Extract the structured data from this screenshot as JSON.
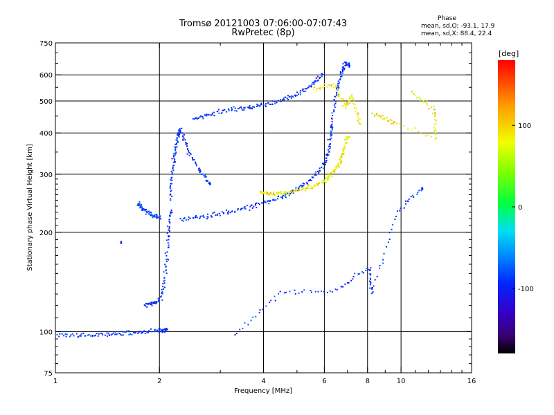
{
  "chart_data": {
    "type": "scatter",
    "title": "Tromsø 20121003 07:06:00-07:07:43",
    "subtitle": "RwPretec (8p)",
    "xlabel": "Frequency [MHz]",
    "ylabel": "Stationary phase Virtual Height [km]",
    "x_scale": "log",
    "y_scale": "log",
    "xlim": [
      1,
      16
    ],
    "ylim": [
      75,
      750
    ],
    "x_ticks": [
      1,
      2,
      4,
      6,
      8,
      10,
      16
    ],
    "x_tick_labels": [
      "1",
      "2",
      "4",
      "6",
      "8",
      "10",
      "16"
    ],
    "x_grid": [
      2,
      4,
      6,
      8,
      10
    ],
    "y_ticks": [
      75,
      100,
      200,
      300,
      400,
      500,
      600,
      750
    ],
    "y_tick_labels": [
      "75",
      "100",
      "200",
      "300",
      "400",
      "500",
      "600",
      "750"
    ],
    "y_grid": [
      100,
      200,
      300,
      400,
      500,
      600
    ],
    "grid": true,
    "colorbar": {
      "label": "[deg]",
      "range": [
        -180,
        180
      ],
      "ticks": [
        100,
        0,
        -100
      ],
      "tick_labels": [
        "100",
        "0",
        "-100"
      ],
      "colormap": "rainbow"
    },
    "phase_stats": {
      "header": "Phase",
      "o_line": "mean, sd,O: -93.1, 17.9",
      "x_line": "mean, sd,X:  88.4, 22.4"
    },
    "series": [
      {
        "mode": "O",
        "phase_mean": -93.1,
        "traces": [
          {
            "x": [
              1.0,
              1.2,
              1.4,
              1.6,
              1.8,
              2.0,
              2.1
            ],
            "y": [
              98,
              97,
              98,
              99,
              100,
              101,
              101
            ]
          },
          {
            "x": [
              1.55
            ],
            "y": [
              186
            ]
          },
          {
            "x": [
              1.82,
              1.92,
              2.02,
              2.08,
              2.12,
              2.16
            ],
            "y": [
              120,
              122,
              125,
              150,
              190,
              230
            ]
          },
          {
            "x": [
              1.72,
              1.8,
              1.9,
              2.0
            ],
            "y": [
              245,
              235,
              225,
              222
            ]
          },
          {
            "x": [
              2.15,
              2.18,
              2.22,
              2.26,
              2.3,
              2.4,
              2.6,
              2.8
            ],
            "y": [
              250,
              300,
              350,
              390,
              410,
              360,
              310,
              280
            ]
          },
          {
            "x": [
              2.3,
              2.6,
              3.0,
              3.5,
              4.0,
              4.5,
              5.0,
              5.5,
              6.0,
              6.2,
              6.3
            ],
            "y": [
              218,
              222,
              228,
              236,
              245,
              255,
              270,
              290,
              320,
              360,
              420
            ]
          },
          {
            "x": [
              2.5,
              2.8,
              3.2,
              3.6,
              4.0,
              4.5,
              5.0,
              5.5,
              5.9
            ],
            "y": [
              440,
              455,
              470,
              478,
              485,
              500,
              525,
              555,
              600
            ]
          },
          {
            "x": [
              6.3,
              6.5,
              6.7,
              6.9,
              7.1
            ],
            "y": [
              420,
              520,
              600,
              650,
              640
            ]
          },
          {
            "x": [
              3.3,
              4.5,
              6.5,
              8.1,
              8.2,
              9.8,
              11.5
            ],
            "y": [
              98,
              132,
              133,
              157,
              130,
              232,
              272
            ]
          }
        ]
      },
      {
        "mode": "X",
        "phase_mean": 88.4,
        "traces": [
          {
            "x": [
              3.9,
              4.2,
              4.6,
              5.0,
              5.5,
              6.0,
              6.3,
              6.6,
              6.8,
              7.0
            ],
            "y": [
              265,
              262,
              262,
              268,
              275,
              285,
              300,
              320,
              350,
              390
            ]
          },
          {
            "x": [
              5.6,
              6.4,
              6.9,
              7.2,
              7.6
            ],
            "y": [
              540,
              560,
              480,
              520,
              430
            ]
          },
          {
            "x": [
              10.8,
              12.5,
              12.6,
              8.3,
              9.5
            ],
            "y": [
              530,
              470,
              385,
              460,
              430
            ]
          }
        ]
      }
    ]
  }
}
